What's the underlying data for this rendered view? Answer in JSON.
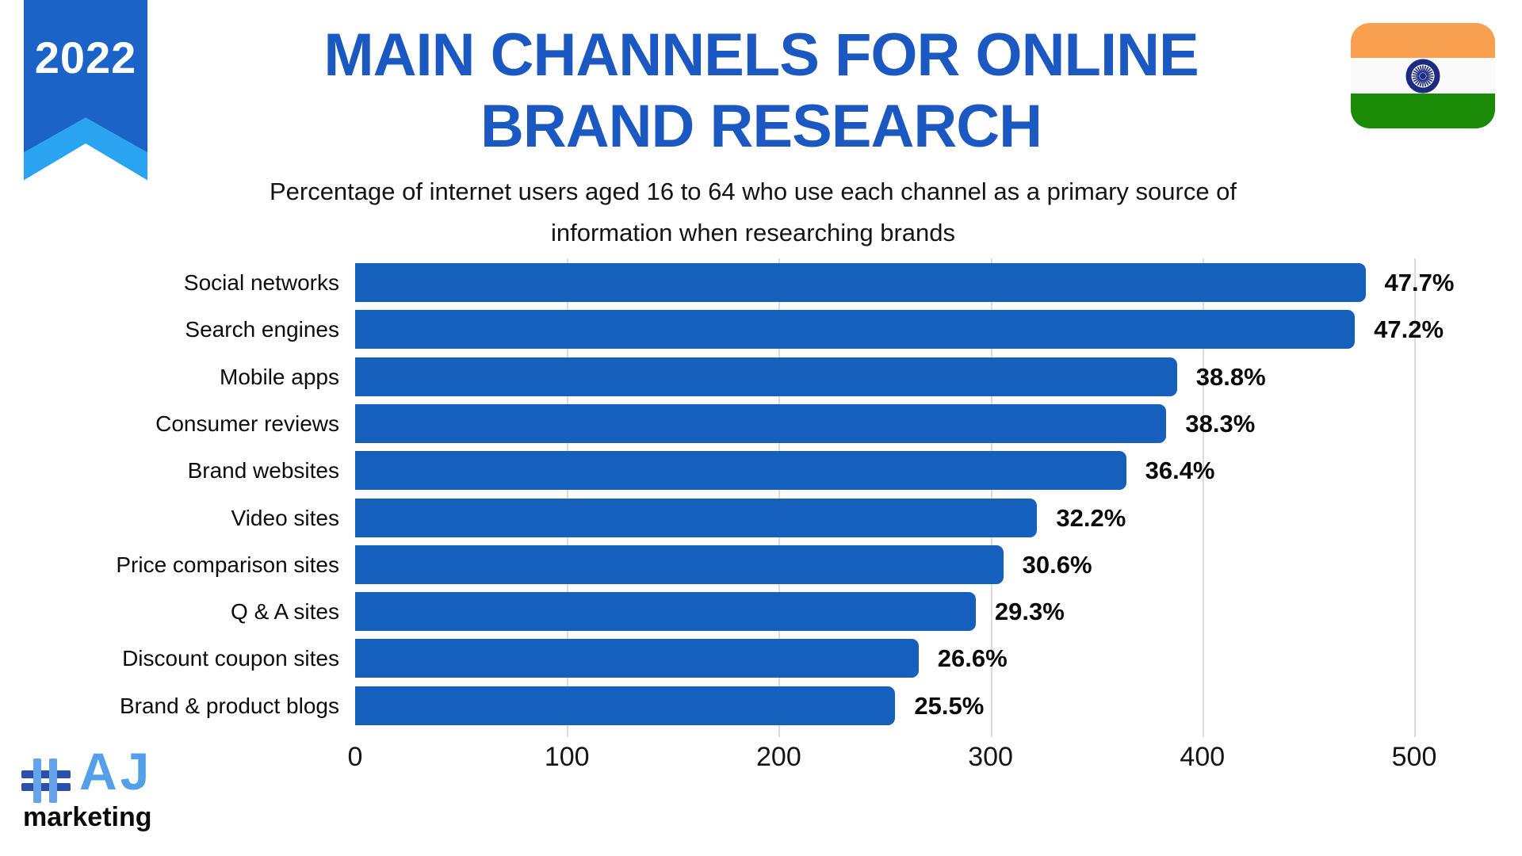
{
  "badge": {
    "year": "2022"
  },
  "header": {
    "title_line1": "MAIN CHANNELS FOR ONLINE",
    "title_line2": "BRAND RESEARCH",
    "subtitle_line1": "Percentage of internet users aged 16 to 64 who use each channel as a primary source of",
    "subtitle_line2": "information when researching brands",
    "title_color": "#1B58C2"
  },
  "flag": {
    "name": "india-flag",
    "saffron": "#F9A050",
    "white": "#FAFAFA",
    "green": "#1B8A07",
    "chakra_navy": "#1C2B80"
  },
  "chart_data": {
    "type": "bar",
    "orientation": "horizontal",
    "title": "MAIN CHANNELS FOR ONLINE BRAND RESEARCH",
    "subtitle": "Percentage of internet users aged 16 to 64 who use each channel as a primary source of information when researching brands",
    "categories": [
      "Social networks",
      "Search engines",
      "Mobile apps",
      "Consumer reviews",
      "Brand websites",
      "Video sites",
      "Price comparison sites",
      "Q & A sites",
      "Discount coupon sites",
      "Brand & product blogs"
    ],
    "values": [
      47.7,
      47.2,
      38.8,
      38.3,
      36.4,
      32.2,
      30.6,
      29.3,
      26.6,
      25.5
    ],
    "value_labels": [
      "47.7%",
      "47.2%",
      "38.8%",
      "38.3%",
      "36.4%",
      "32.2%",
      "30.6%",
      "29.3%",
      "26.6%",
      "25.5%"
    ],
    "x_ticks": [
      0,
      100,
      200,
      300,
      400,
      500
    ],
    "x_axis_scale_note": "axis units equal percentage times 10",
    "xlim": [
      0,
      510
    ],
    "bar_color": "#155FBD",
    "gridline_color": "#DCDCDC",
    "grid": "vertical",
    "legend": "none"
  },
  "logo": {
    "hash_icon": "#",
    "brand": "AJ",
    "word": "marketing",
    "hash_vertical_color": "#66A3EA",
    "hash_horizontal_color": "#2C4FA8",
    "brand_color": "#549FEA"
  }
}
